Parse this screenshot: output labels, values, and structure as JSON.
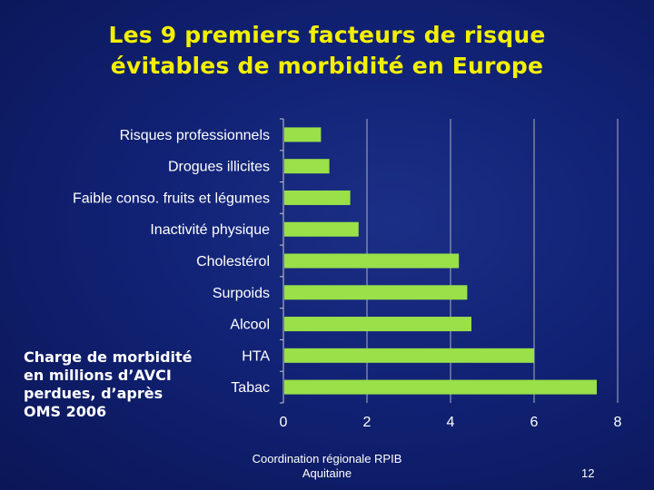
{
  "slide": {
    "title_line1": "Les 9 premiers facteurs de risque",
    "title_line2": "évitables de morbidité en Europe",
    "caption_lines": [
      "Charge de morbidité",
      "en millions d’AVCI",
      "perdues, d’après",
      "OMS 2006"
    ],
    "footer_line1": "Coordination régionale RPIB",
    "footer_line2": "Aquitaine",
    "page_number": "12"
  },
  "colors": {
    "title": "#f2f000",
    "bar": "#99e049",
    "text": "#ffffff",
    "axis": "#c8c8c8"
  },
  "chart_data": {
    "type": "bar",
    "orientation": "horizontal",
    "categories": [
      "Risques professionnels",
      "Drogues illicites",
      "Faible conso. fruits et légumes",
      "Inactivité physique",
      "Cholestérol",
      "Surpoids",
      "Alcool",
      "HTA",
      "Tabac"
    ],
    "values": [
      0.9,
      1.1,
      1.6,
      1.8,
      4.2,
      4.4,
      4.5,
      6.0,
      7.5
    ],
    "xlim": [
      0,
      8
    ],
    "xticks": [
      0,
      2,
      4,
      6,
      8
    ],
    "grid": "vertical",
    "legend": "none"
  }
}
